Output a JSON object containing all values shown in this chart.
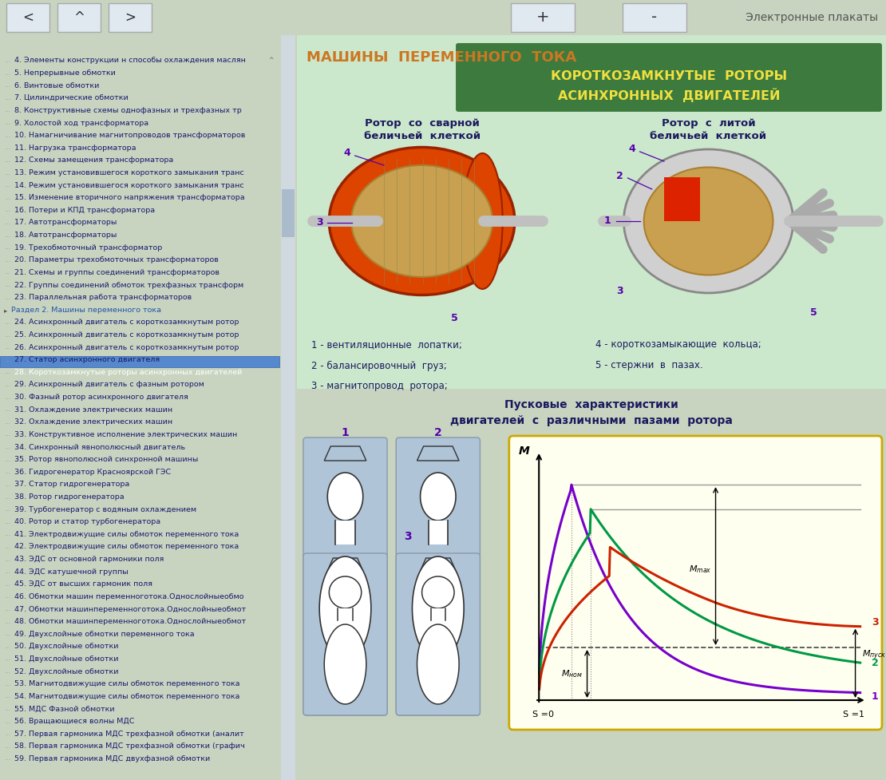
{
  "title_header": "Электронные плакаты",
  "section_title": "МАШИНЫ  ПЕРЕМЕННОГО  ТОКА",
  "box_title_line1": "КОРОТКОЗАМКНУТЫЕ  РОТОРЫ",
  "box_title_line2": "АСИНХРОННЫХ  ДВИГАТЕЛЕЙ",
  "rotor1_title_line1": "Ротор  со  сварной",
  "rotor1_title_line2": "беличьей  клеткой",
  "rotor2_title_line1": "Ротор  с  литой",
  "rotor2_title_line2": "беличьей  клеткой",
  "legend_left": [
    "1 - вентиляционные  лопатки;",
    "2 - балансировочный  груз;",
    "3 - магнитопровод  ротора;"
  ],
  "legend_right": [
    "4 - короткозамыкающие  кольца;",
    "5 - стержни  в  пазах."
  ],
  "chart_title_line1": "Пусковые  характеристики",
  "chart_title_line2": "двигателей  с  различными  пазами  ротора",
  "menu_items": [
    {
      "text": "4. Элементы конструкции н способы охлаждения маслян",
      "type": "item",
      "selected": false,
      "scroll_arrow": true
    },
    {
      "text": "5. Непрерывные обмотки",
      "type": "item",
      "selected": false,
      "scroll_arrow": false
    },
    {
      "text": "6. Винтовые обмотки",
      "type": "item",
      "selected": false,
      "scroll_arrow": false
    },
    {
      "text": "7. Цилиндрические обмотки",
      "type": "item",
      "selected": false,
      "scroll_arrow": false
    },
    {
      "text": "8. Конструктивные схемы однофазных и трехфазных тр",
      "type": "item",
      "selected": false,
      "scroll_arrow": false
    },
    {
      "text": "9. Холостой ход трансформатора",
      "type": "item",
      "selected": false,
      "scroll_arrow": false
    },
    {
      "text": "10. Намагничивание магнитопроводов трансформаторов",
      "type": "item",
      "selected": false,
      "scroll_arrow": false
    },
    {
      "text": "11. Нагрузка трансформатора",
      "type": "item",
      "selected": false,
      "scroll_arrow": false
    },
    {
      "text": "12. Схемы замещения трансформатора",
      "type": "item",
      "selected": false,
      "scroll_arrow": false
    },
    {
      "text": "13. Режим установившегося короткого замыкания транс",
      "type": "item",
      "selected": false,
      "scroll_arrow": false
    },
    {
      "text": "14. Режим установившегося короткого замыкания транс",
      "type": "item",
      "selected": false,
      "scroll_arrow": false
    },
    {
      "text": "15. Изменение вторичного напряжения трансформатора",
      "type": "item",
      "selected": false,
      "scroll_arrow": false
    },
    {
      "text": "16. Потери и КПД трансформатора",
      "type": "item",
      "selected": false,
      "scroll_arrow": false
    },
    {
      "text": "17. Автотрансформаторы",
      "type": "item",
      "selected": false,
      "scroll_arrow": false
    },
    {
      "text": "18. Автотрансформаторы",
      "type": "item",
      "selected": false,
      "scroll_arrow": false
    },
    {
      "text": "19. Трехобмоточный трансформатор",
      "type": "item",
      "selected": false,
      "scroll_arrow": false
    },
    {
      "text": "20. Параметры трехобмоточных трансформаторов",
      "type": "item",
      "selected": false,
      "scroll_arrow": false
    },
    {
      "text": "21. Схемы и группы соединений трансформаторов",
      "type": "item",
      "selected": false,
      "scroll_arrow": false
    },
    {
      "text": "22. Группы соединений обмоток трехфазных трансформ",
      "type": "item",
      "selected": false,
      "scroll_arrow": false
    },
    {
      "text": "23. Параллельная работа трансформаторов",
      "type": "item",
      "selected": false,
      "scroll_arrow": false
    },
    {
      "text": "Раздел 2. Машины переменного тока",
      "type": "section",
      "selected": false,
      "scroll_arrow": false
    },
    {
      "text": "24. Асинхронный двигатель с короткозамкнутым ротор",
      "type": "item",
      "selected": false,
      "scroll_arrow": false
    },
    {
      "text": "25. Асинхронный двигатель с короткозамкнутым ротор",
      "type": "item",
      "selected": false,
      "scroll_arrow": false
    },
    {
      "text": "26. Асинхронный двигатель с короткозамкнутым ротор",
      "type": "item",
      "selected": false,
      "scroll_arrow": false
    },
    {
      "text": "27. Статор асинхронного двигателя",
      "type": "item",
      "selected": false,
      "scroll_arrow": false
    },
    {
      "text": "28. Короткозамкнутые роторы асинхронных двигателей",
      "type": "item",
      "selected": true,
      "scroll_arrow": false
    },
    {
      "text": "29. Асинхронный двигатель с фазным ротором",
      "type": "item",
      "selected": false,
      "scroll_arrow": false
    },
    {
      "text": "30. Фазный ротор асинхронного двигателя",
      "type": "item",
      "selected": false,
      "scroll_arrow": false
    },
    {
      "text": "31. Охлаждение электрических машин",
      "type": "item",
      "selected": false,
      "scroll_arrow": false
    },
    {
      "text": "32. Охлаждение электрических машин",
      "type": "item",
      "selected": false,
      "scroll_arrow": false
    },
    {
      "text": "33. Конструктивное исполнение электрических машин",
      "type": "item",
      "selected": false,
      "scroll_arrow": false
    },
    {
      "text": "34. Синхронный явнополюсный двигатель",
      "type": "item",
      "selected": false,
      "scroll_arrow": false
    },
    {
      "text": "35. Ротор явнополюсной синхронной машины",
      "type": "item",
      "selected": false,
      "scroll_arrow": false
    },
    {
      "text": "36. Гидрогенератор Красноярской ГЭС",
      "type": "item",
      "selected": false,
      "scroll_arrow": false
    },
    {
      "text": "37. Статор гидрогенератора",
      "type": "item",
      "selected": false,
      "scroll_arrow": false
    },
    {
      "text": "38. Ротор гидрогенератора",
      "type": "item",
      "selected": false,
      "scroll_arrow": false
    },
    {
      "text": "39. Турбогенератор с водяным охлаждением",
      "type": "item",
      "selected": false,
      "scroll_arrow": false
    },
    {
      "text": "40. Ротор и статор турбогенератора",
      "type": "item",
      "selected": false,
      "scroll_arrow": false
    },
    {
      "text": "41. Электродвижущие силы обмоток переменного тока",
      "type": "item",
      "selected": false,
      "scroll_arrow": false
    },
    {
      "text": "42. Электродвижущие силы обмоток переменного тока",
      "type": "item",
      "selected": false,
      "scroll_arrow": false
    },
    {
      "text": "43. ЭДС от основной гармоники поля",
      "type": "item",
      "selected": false,
      "scroll_arrow": false
    },
    {
      "text": "44. ЭДС катушечной группы",
      "type": "item",
      "selected": false,
      "scroll_arrow": false
    },
    {
      "text": "45. ЭДС от высших гармоник поля",
      "type": "item",
      "selected": false,
      "scroll_arrow": false
    },
    {
      "text": "46. Обмотки машин переменноготока.Однослойныеобмо",
      "type": "item",
      "selected": false,
      "scroll_arrow": false
    },
    {
      "text": "47. Обмотки машинпеременноготока.Однослойныеобмот",
      "type": "item",
      "selected": false,
      "scroll_arrow": false
    },
    {
      "text": "48. Обмотки машинпеременноготока.Однослойныеобмот",
      "type": "item",
      "selected": false,
      "scroll_arrow": false
    },
    {
      "text": "49. Двухслойные обмотки переменного тока",
      "type": "item",
      "selected": false,
      "scroll_arrow": false
    },
    {
      "text": "50. Двухслойные обмотки",
      "type": "item",
      "selected": false,
      "scroll_arrow": false
    },
    {
      "text": "51. Двухслойные обмотки",
      "type": "item",
      "selected": false,
      "scroll_arrow": false
    },
    {
      "text": "52. Двухслойные обмотки",
      "type": "item",
      "selected": false,
      "scroll_arrow": false
    },
    {
      "text": "53. Магнитодвижущие силы обмоток переменного тока",
      "type": "item",
      "selected": false,
      "scroll_arrow": false
    },
    {
      "text": "54. Магнитодвижущие силы обмоток переменного тока",
      "type": "item",
      "selected": false,
      "scroll_arrow": false
    },
    {
      "text": "55. МДС Фазной обмотки",
      "type": "item",
      "selected": false,
      "scroll_arrow": false
    },
    {
      "text": "56. Вращающиеся волны МДС",
      "type": "item",
      "selected": false,
      "scroll_arrow": false
    },
    {
      "text": "57. Первая гармоника МДС трехфазной обмотки (аналит",
      "type": "item",
      "selected": false,
      "scroll_arrow": false
    },
    {
      "text": "58. Первая гармоника МДС трехфазной обмотки (графич",
      "type": "item",
      "selected": false,
      "scroll_arrow": false
    },
    {
      "text": "59. Первая гармоника МДС двухфазной обмотки",
      "type": "item",
      "selected": false,
      "scroll_arrow": false
    }
  ],
  "bg_color": "#c8d4c0",
  "toolbar_bg": "#dce8f0",
  "left_panel_bg": "#ffffff",
  "right_panel_bg": "#ddeedd",
  "green_box_color": "#3d7a3d",
  "selected_item_bg": "#5588cc",
  "selected_item_text": "#ffffff",
  "section_color": "#2255aa",
  "menu_text_color": "#1a1a6e",
  "orange_title_color": "#cc7722",
  "rotor_label_color": "#1a1a5e",
  "num_label_color": "#5500aa",
  "legend_text_color": "#1a1a5e",
  "chart_bg_color": "#fffff0",
  "chart_border_color": "#ccaa00",
  "curve1_color": "#7700cc",
  "curve2_color": "#009944",
  "curve3_color": "#cc2200",
  "axis_label_color": "#000000"
}
